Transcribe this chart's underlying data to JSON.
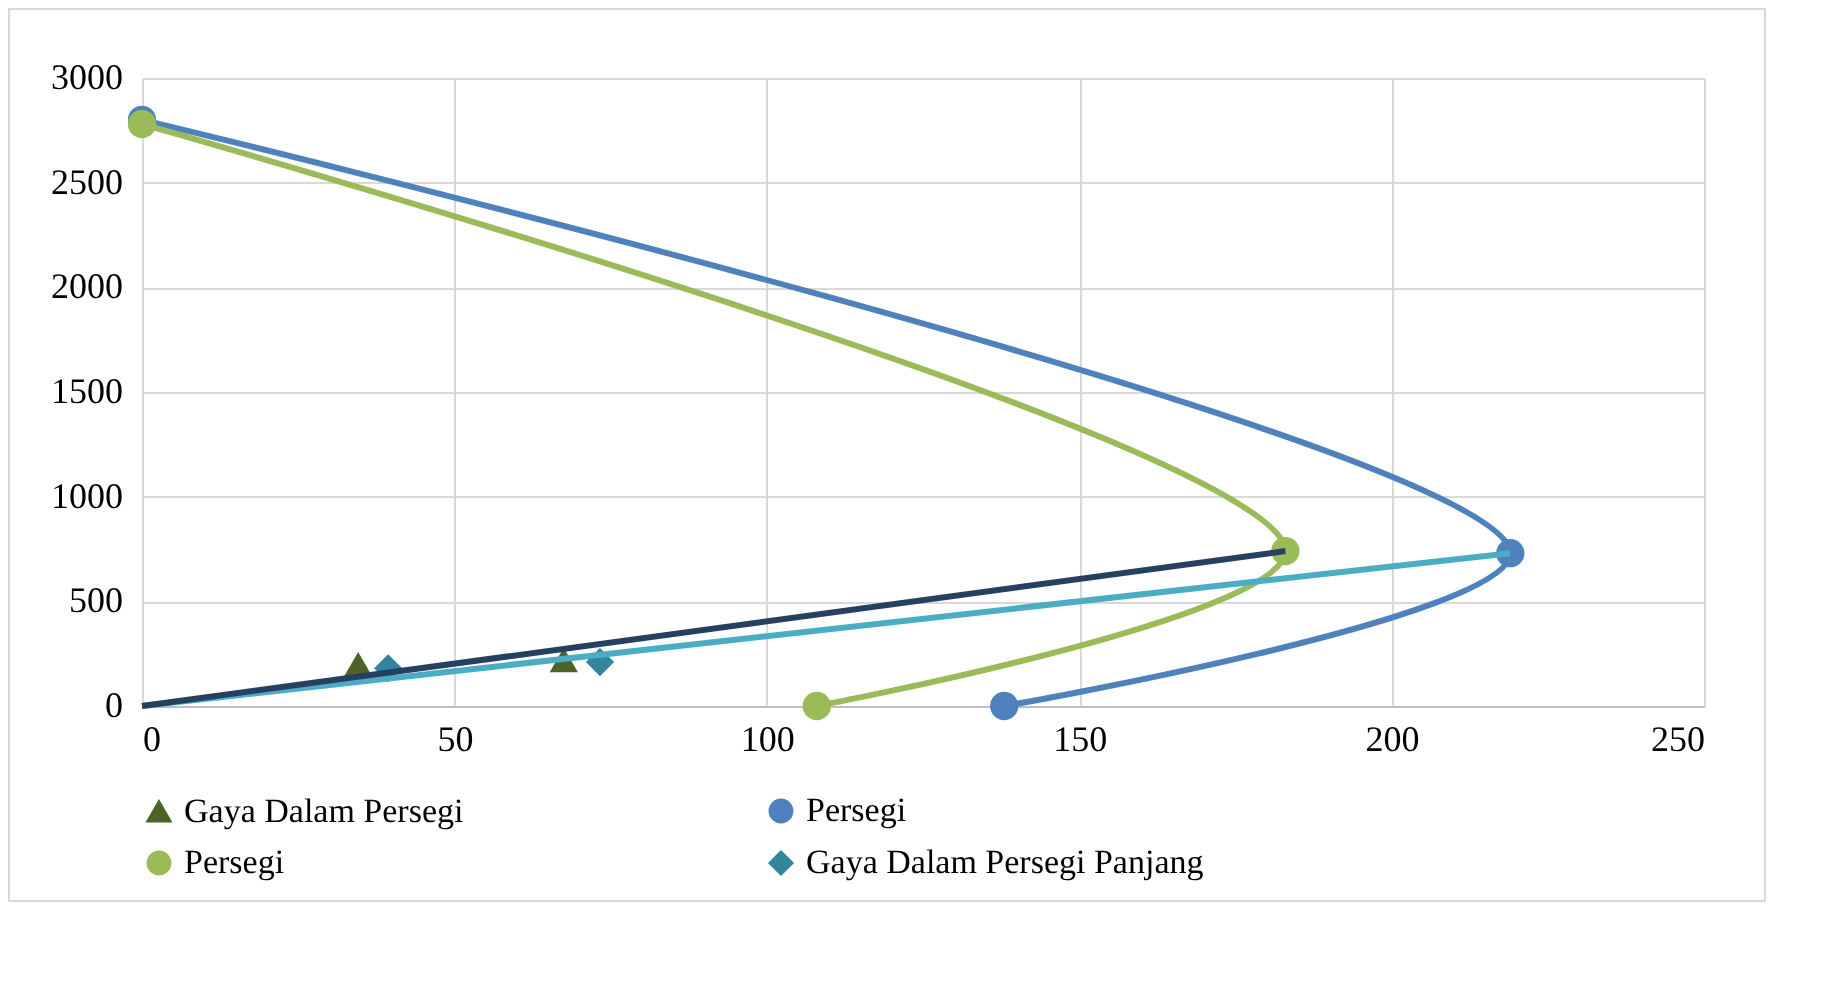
{
  "chart_data": {
    "type": "line",
    "series": [
      {
        "name": "Gaya Dalam Persegi",
        "type": "scatter",
        "marker": "triangle",
        "color": "#4f6228",
        "x": [
          34.6,
          67.5
        ],
        "values": [
          200,
          220
        ]
      },
      {
        "name": "Persegi",
        "type": "line",
        "marker": "circle",
        "color": "#4f81bd",
        "x": [
          0,
          219,
          138
        ],
        "values": [
          2800,
          730,
          0
        ]
      },
      {
        "name": "Persegi",
        "type": "line",
        "marker": "circle",
        "color": "#9bbb59",
        "x": [
          0,
          183,
          108
        ],
        "values": [
          2780,
          740,
          0
        ]
      },
      {
        "name": "Gaya Dalam Persegi Panjang",
        "type": "scatter",
        "marker": "diamond",
        "color": "#31859c",
        "x": [
          39.4,
          73.3
        ],
        "values": [
          180,
          210
        ]
      },
      {
        "type": "line",
        "marker": "none",
        "color": "#4bacc6",
        "x": [
          0,
          219
        ],
        "values": [
          0,
          730
        ]
      },
      {
        "type": "line",
        "marker": "none",
        "color": "#254061",
        "x": [
          0,
          183
        ],
        "values": [
          0,
          740
        ]
      }
    ],
    "xlim": [
      0,
      250
    ],
    "xticks": [
      0,
      50,
      100,
      150,
      200,
      250
    ],
    "ylim": [
      0,
      3000
    ],
    "yticks": [
      0,
      500,
      1000,
      1500,
      2000,
      2500,
      3000
    ],
    "grid": true,
    "legend": "bottom"
  }
}
